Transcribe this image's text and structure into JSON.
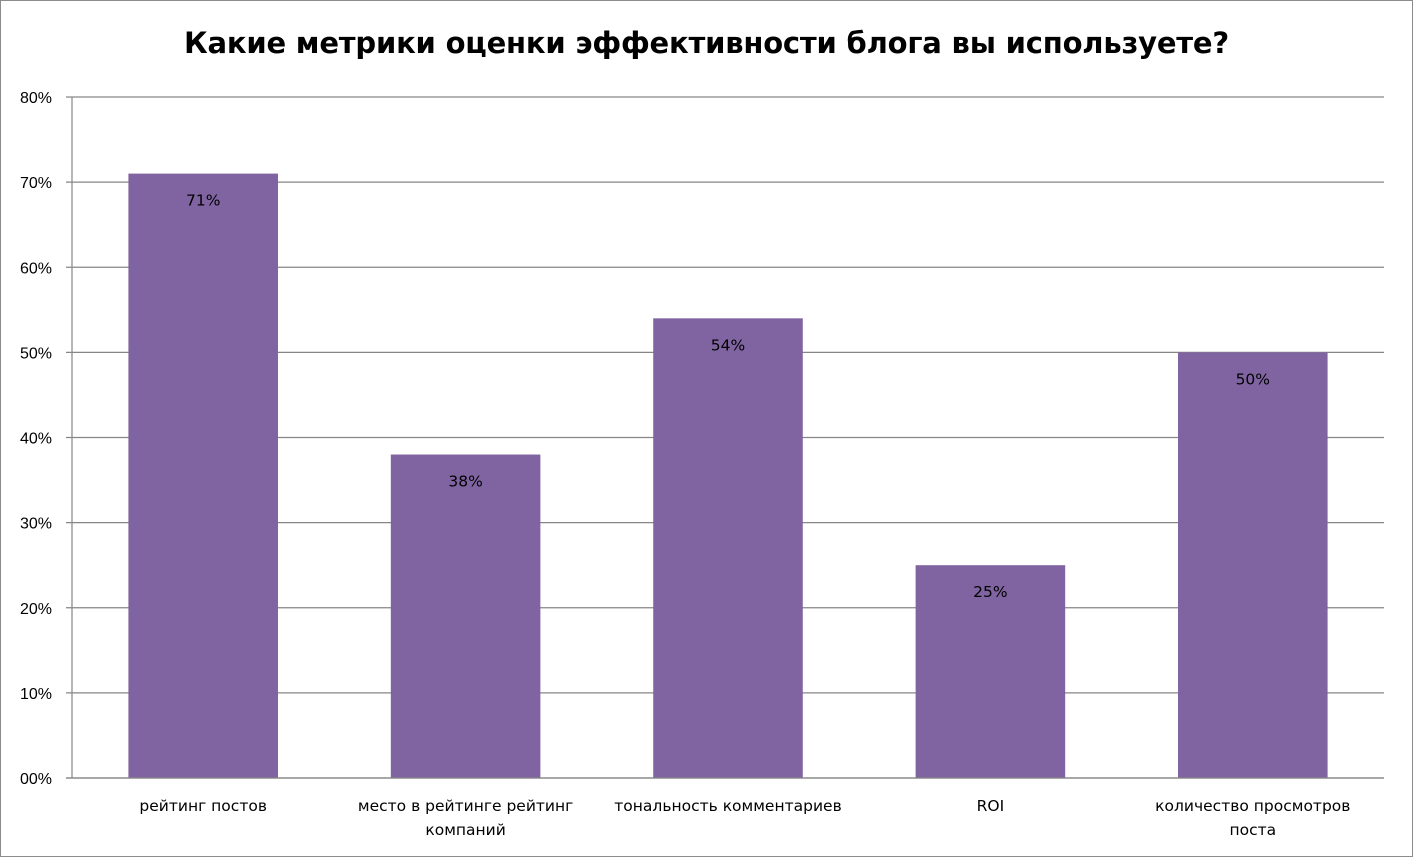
{
  "chart_data": {
    "type": "bar",
    "title": "Какие метрики оценки эффективности блога вы используете?",
    "categories": [
      [
        "рейтинг постов"
      ],
      [
        "место в рейтинге рейтинг",
        "компаний"
      ],
      [
        "тональность комментариев"
      ],
      [
        "ROI"
      ],
      [
        "количество просмотров",
        "поста"
      ]
    ],
    "values": [
      71,
      38,
      54,
      25,
      50
    ],
    "value_labels": [
      "71%",
      "38%",
      "54%",
      "25%",
      "50%"
    ],
    "ylim": [
      0,
      80
    ],
    "yticks": [
      "00%",
      "10%",
      "20%",
      "30%",
      "40%",
      "50%",
      "60%",
      "70%",
      "80%"
    ],
    "grid": true,
    "legend": "none",
    "bar_color": "#8064a2",
    "grid_color": "#868686"
  }
}
